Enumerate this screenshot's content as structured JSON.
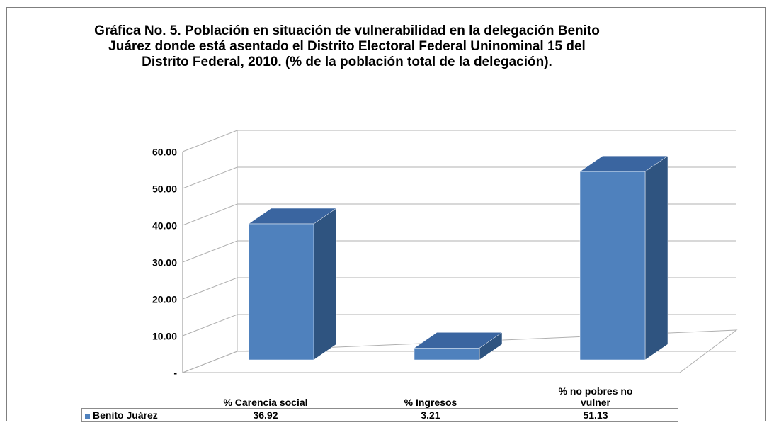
{
  "chart_data": {
    "type": "bar3d",
    "title": "Gráfica No. 5. Población en situación de vulnerabilidad en la delegación Benito Juárez donde está asentado el Distrito Electoral  Federal Uninominal  15 del Distrito Federal, 2010. (% de la población total de la delegación).",
    "categories": [
      "% Carencia social",
      "% Ingresos",
      "% no pobres no vulner"
    ],
    "series": [
      {
        "name": "Benito Juárez",
        "color": "#4f81bd",
        "values": [
          36.92,
          3.21,
          51.13
        ]
      }
    ],
    "ylim": [
      0,
      60
    ],
    "yticks": [
      {
        "value": 0,
        "label": "-"
      },
      {
        "value": 10,
        "label": "10.00"
      },
      {
        "value": 20,
        "label": "20.00"
      },
      {
        "value": 30,
        "label": "30.00"
      },
      {
        "value": 40,
        "label": "40.00"
      },
      {
        "value": 50,
        "label": "50.00"
      },
      {
        "value": 60,
        "label": "60.00"
      }
    ],
    "grid": true
  }
}
